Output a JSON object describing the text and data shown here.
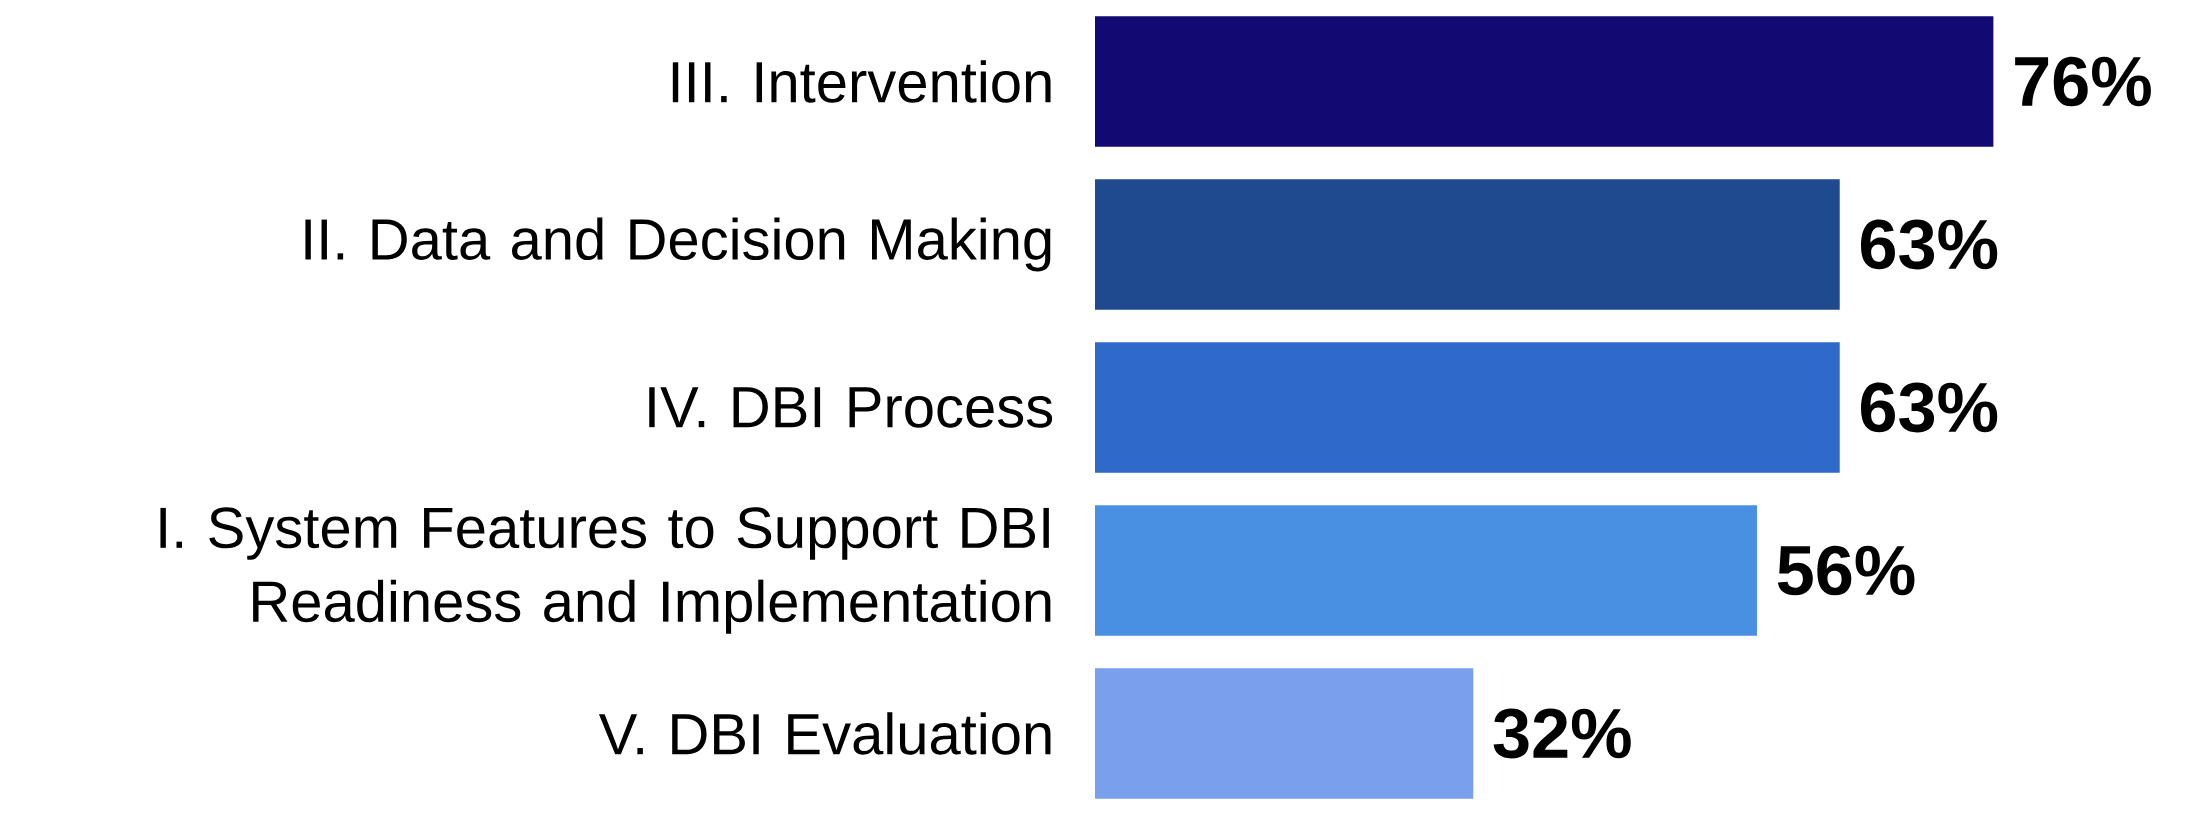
{
  "chart_data": {
    "type": "bar",
    "orientation": "horizontal",
    "categories": [
      "III. Intervention",
      "II. Data and Decision Making",
      "IV. DBI Process",
      "I. System Features to Support DBI Readiness and Implementation",
      "V. DBI Evaluation"
    ],
    "values": [
      76,
      63,
      63,
      56,
      32
    ],
    "colors": [
      "#120a72",
      "#1f4a8f",
      "#2f6acb",
      "#4a90e2",
      "#7a9fec"
    ],
    "value_labels": [
      "76%",
      "63%",
      "63%",
      "56%",
      "32%"
    ]
  }
}
